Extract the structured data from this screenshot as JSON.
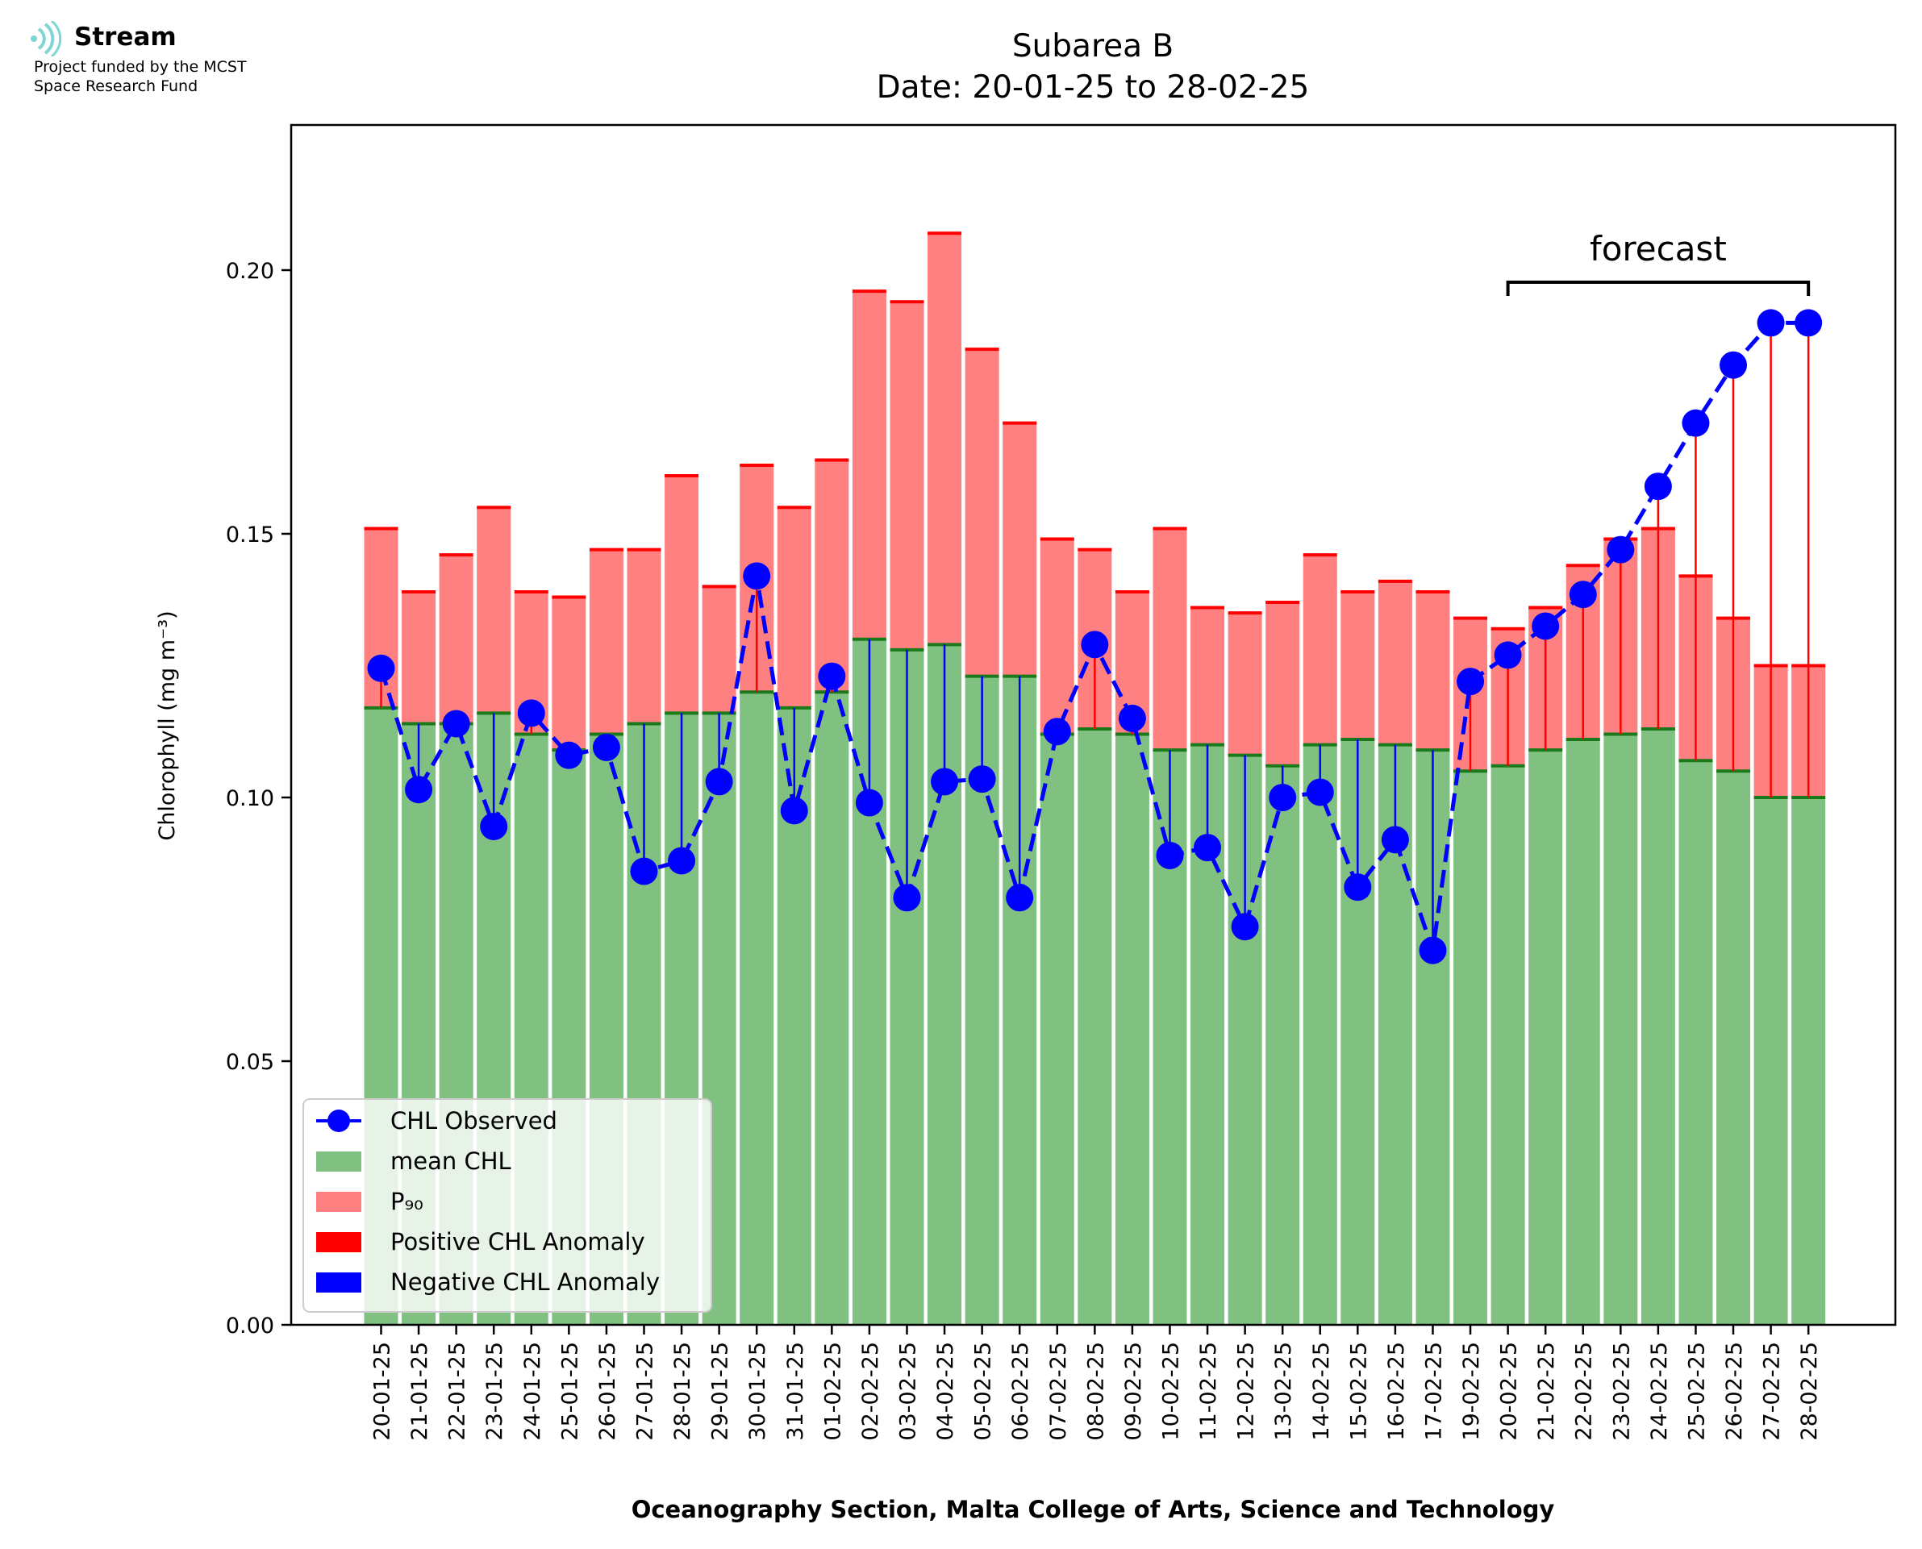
{
  "logo": {
    "name": "Stream",
    "line1": "Project funded by the MCST",
    "line2": "Space Research Fund"
  },
  "chart_data": {
    "type": "bar",
    "title": "Subarea B",
    "subtitle": "Date: 20-01-25 to 28-02-25",
    "xlabel": "Oceanography Section, Malta College of Arts, Science and Technology",
    "ylabel": "Chlorophyll (mg m⁻³)",
    "ylim": [
      0,
      0.2275
    ],
    "yticks": [
      0.0,
      0.05,
      0.1,
      0.15,
      0.2
    ],
    "ytick_labels": [
      "0.00",
      "0.05",
      "0.10",
      "0.15",
      "0.20"
    ],
    "categories": [
      "20-01-25",
      "21-01-25",
      "22-01-25",
      "23-01-25",
      "24-01-25",
      "25-01-25",
      "26-01-25",
      "27-01-25",
      "28-01-25",
      "29-01-25",
      "30-01-25",
      "31-01-25",
      "01-02-25",
      "02-02-25",
      "03-02-25",
      "04-02-25",
      "05-02-25",
      "06-02-25",
      "07-02-25",
      "08-02-25",
      "09-02-25",
      "10-02-25",
      "11-02-25",
      "12-02-25",
      "13-02-25",
      "14-02-25",
      "15-02-25",
      "16-02-25",
      "17-02-25",
      "19-02-25",
      "20-02-25",
      "21-02-25",
      "22-02-25",
      "23-02-25",
      "24-02-25",
      "25-02-25",
      "26-02-25",
      "27-02-25",
      "28-02-25"
    ],
    "series": [
      {
        "name": "mean CHL",
        "kind": "bar",
        "color": "#80c080",
        "values": [
          0.117,
          0.114,
          0.114,
          0.116,
          0.112,
          0.109,
          0.112,
          0.114,
          0.116,
          0.116,
          0.12,
          0.117,
          0.12,
          0.13,
          0.128,
          0.129,
          0.123,
          0.123,
          0.112,
          0.113,
          0.112,
          0.109,
          0.11,
          0.108,
          0.106,
          0.11,
          0.111,
          0.11,
          0.109,
          0.105,
          0.106,
          0.109,
          0.111,
          0.112,
          0.113,
          0.107,
          0.105,
          0.1,
          0.1
        ]
      },
      {
        "name": "P₉₀",
        "kind": "bar",
        "color": "#ff8080",
        "values": [
          0.151,
          0.139,
          0.146,
          0.155,
          0.139,
          0.138,
          0.147,
          0.147,
          0.161,
          0.14,
          0.163,
          0.155,
          0.164,
          0.196,
          0.194,
          0.207,
          0.185,
          0.171,
          0.149,
          0.147,
          0.139,
          0.151,
          0.136,
          0.135,
          0.137,
          0.146,
          0.139,
          0.141,
          0.139,
          0.134,
          0.132,
          0.136,
          0.144,
          0.149,
          0.151,
          0.142,
          0.134,
          0.125,
          0.125
        ]
      },
      {
        "name": "CHL Observed",
        "kind": "line",
        "color": "#0000ff",
        "values": [
          0.1245,
          0.1015,
          0.114,
          0.0945,
          0.116,
          0.108,
          0.1095,
          0.086,
          0.088,
          0.103,
          0.142,
          0.0975,
          0.123,
          0.099,
          0.081,
          0.103,
          0.1035,
          0.081,
          0.1125,
          0.129,
          0.115,
          0.089,
          0.0905,
          0.0755,
          0.1,
          0.101,
          0.083,
          0.092,
          0.071,
          0.122,
          0.127,
          0.1325,
          0.1385,
          0.147,
          0.159,
          0.171,
          0.182,
          0.19,
          0.19
        ]
      }
    ],
    "legend": {
      "placement": "lower-left",
      "entries": [
        "CHL Observed",
        "mean CHL",
        "P₉₀",
        "Positive CHL Anomaly",
        "Negative CHL Anomaly"
      ]
    },
    "anomaly_colors": {
      "positive": "#ff0000",
      "negative": "#0000ff"
    },
    "annotation": {
      "text": "forecast",
      "from_category": "20-02-25",
      "to_category": "28-02-25"
    }
  }
}
